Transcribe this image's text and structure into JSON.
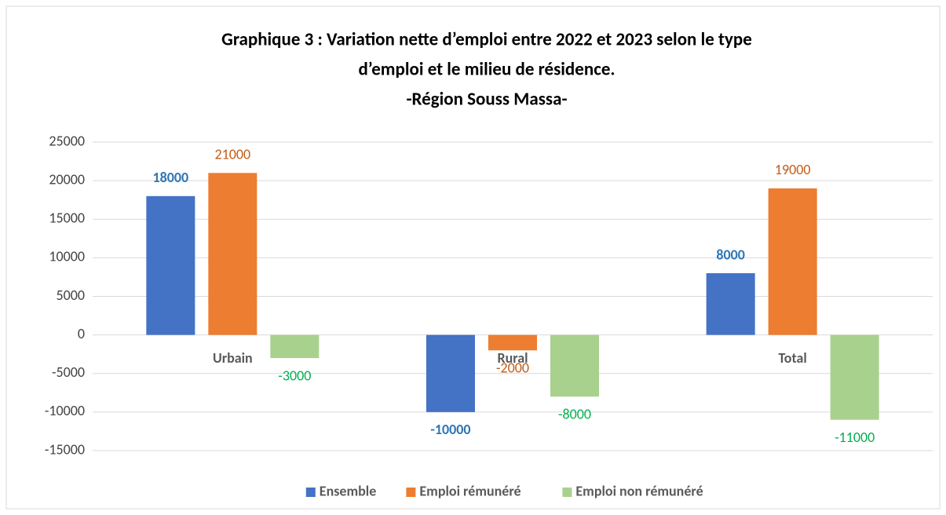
{
  "chart_data": {
    "type": "bar",
    "title": [
      "Graphique 3 : Variation nette d’emploi entre 2022 et 2023 selon le type",
      "d’emploi et le milieu de résidence."
    ],
    "subtitle": "-Région Souss Massa-",
    "categories": [
      "Urbain",
      "Rural",
      "Total"
    ],
    "series": [
      {
        "name": "Ensemble",
        "color": "#4472c4",
        "label_color": "#2e75b6",
        "label_bold": true,
        "values": [
          18000,
          -10000,
          8000
        ]
      },
      {
        "name": "Emploi rémunéré",
        "color": "#ed7d31",
        "label_color": "#c55a11",
        "label_bold": false,
        "values": [
          21000,
          -2000,
          19000
        ]
      },
      {
        "name": "Emploi non rémunéré",
        "color": "#a9d18e",
        "label_color": "#00b050",
        "label_bold": false,
        "values": [
          -3000,
          -8000,
          -11000
        ]
      }
    ],
    "ylim": [
      -15000,
      25000
    ],
    "yticks": [
      -15000,
      -10000,
      -5000,
      0,
      5000,
      10000,
      15000,
      20000,
      25000
    ],
    "grid": true,
    "legend": "bottom"
  }
}
